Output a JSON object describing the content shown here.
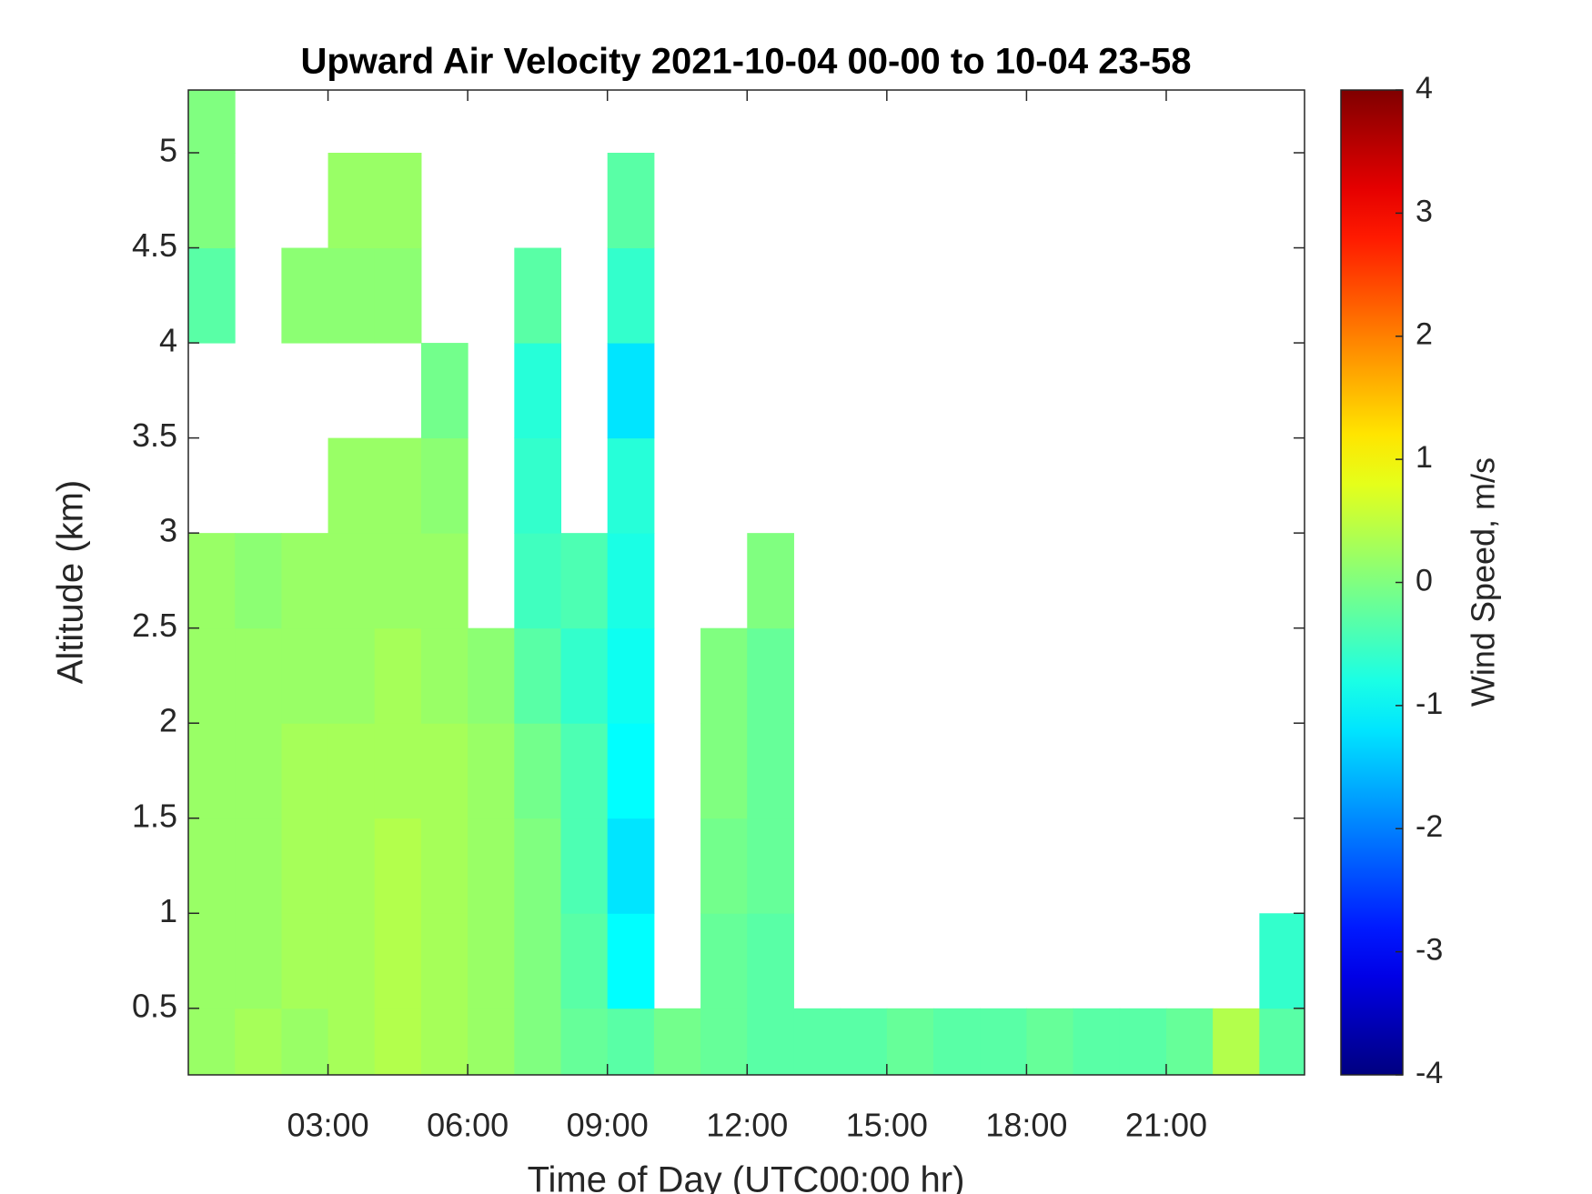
{
  "chart_data": {
    "type": "heatmap",
    "title": "Upward Air Velocity 2021-10-04 00-00 to 10-04 23-58",
    "x_label": "Time of Day (UTC00:00 hr)",
    "y_label": "Altitude (km)",
    "colorbar_label": "Wind Speed, m/s",
    "colormap": "jet",
    "x": [
      0.5,
      1.5,
      2.5,
      3.5,
      4.5,
      5.5,
      6.5,
      7.5,
      8.5,
      9.5,
      10.5,
      11.5,
      12.5,
      13.5,
      14.5,
      15.5,
      16.5,
      17.5,
      18.5,
      19.5,
      20.5,
      21.5,
      22.5,
      23.5
    ],
    "y": [
      0.25,
      0.75,
      1.25,
      1.75,
      2.25,
      2.75,
      3.25,
      3.75,
      4.25,
      4.75,
      5.25
    ],
    "z": [
      [
        0.2,
        0.3,
        0.2,
        0.3,
        0.4,
        0.3,
        0.2,
        0.0,
        -0.2,
        -0.3,
        -0.1,
        -0.2,
        -0.3,
        -0.3,
        -0.3,
        -0.2,
        -0.3,
        -0.3,
        -0.2,
        -0.3,
        -0.3,
        -0.2,
        0.4,
        -0.3
      ],
      [
        0.2,
        0.2,
        0.3,
        0.3,
        0.4,
        0.3,
        0.2,
        0.0,
        -0.3,
        -1.0,
        null,
        -0.2,
        -0.3,
        null,
        null,
        null,
        null,
        null,
        null,
        null,
        null,
        null,
        null,
        -0.6
      ],
      [
        0.2,
        0.2,
        0.3,
        0.3,
        0.4,
        0.3,
        0.2,
        0.0,
        -0.4,
        -1.2,
        null,
        -0.1,
        -0.2,
        null,
        null,
        null,
        null,
        null,
        null,
        null,
        null,
        null,
        null,
        null
      ],
      [
        0.2,
        0.2,
        0.3,
        0.3,
        0.3,
        0.3,
        0.2,
        -0.1,
        -0.4,
        -1.0,
        null,
        0.0,
        -0.2,
        null,
        null,
        null,
        null,
        null,
        null,
        null,
        null,
        null,
        null,
        null
      ],
      [
        0.2,
        0.2,
        0.2,
        0.2,
        0.3,
        0.2,
        0.1,
        -0.3,
        -0.6,
        -0.9,
        null,
        0.0,
        -0.2,
        null,
        null,
        null,
        null,
        null,
        null,
        null,
        null,
        null,
        null,
        null
      ],
      [
        0.2,
        0.1,
        0.2,
        0.2,
        0.2,
        0.2,
        null,
        -0.5,
        -0.4,
        -0.8,
        null,
        null,
        0.0,
        null,
        null,
        null,
        null,
        null,
        null,
        null,
        null,
        null,
        null,
        null
      ],
      [
        null,
        null,
        null,
        0.2,
        0.2,
        0.1,
        null,
        -0.6,
        null,
        -0.7,
        null,
        null,
        null,
        null,
        null,
        null,
        null,
        null,
        null,
        null,
        null,
        null,
        null,
        null
      ],
      [
        null,
        null,
        null,
        null,
        null,
        -0.1,
        null,
        -0.7,
        null,
        -1.2,
        null,
        null,
        null,
        null,
        null,
        null,
        null,
        null,
        null,
        null,
        null,
        null,
        null,
        null
      ],
      [
        -0.3,
        null,
        0.1,
        0.1,
        0.1,
        null,
        null,
        -0.3,
        null,
        -0.6,
        null,
        null,
        null,
        null,
        null,
        null,
        null,
        null,
        null,
        null,
        null,
        null,
        null,
        null
      ],
      [
        0.0,
        null,
        null,
        0.2,
        0.2,
        null,
        null,
        null,
        null,
        -0.3,
        null,
        null,
        null,
        null,
        null,
        null,
        null,
        null,
        null,
        null,
        null,
        null,
        null,
        null
      ],
      [
        0.0,
        null,
        null,
        null,
        null,
        null,
        null,
        null,
        null,
        null,
        null,
        null,
        null,
        null,
        null,
        null,
        null,
        null,
        null,
        null,
        null,
        null,
        null,
        null
      ]
    ],
    "xlim": [
      0,
      23.97
    ],
    "xticks": [
      {
        "value": 3,
        "label": "03:00"
      },
      {
        "value": 6,
        "label": "06:00"
      },
      {
        "value": 9,
        "label": "09:00"
      },
      {
        "value": 12,
        "label": "12:00"
      },
      {
        "value": 15,
        "label": "15:00"
      },
      {
        "value": 18,
        "label": "18:00"
      },
      {
        "value": 21,
        "label": "21:00"
      }
    ],
    "ylim": [
      0.15,
      5.33
    ],
    "yticks": [
      0.5,
      1,
      1.5,
      2,
      2.5,
      3,
      3.5,
      4,
      4.5,
      5
    ],
    "clim": [
      -4,
      4
    ],
    "cticks": [
      -4,
      -3,
      -2,
      -1,
      0,
      1,
      2,
      3,
      4
    ]
  }
}
